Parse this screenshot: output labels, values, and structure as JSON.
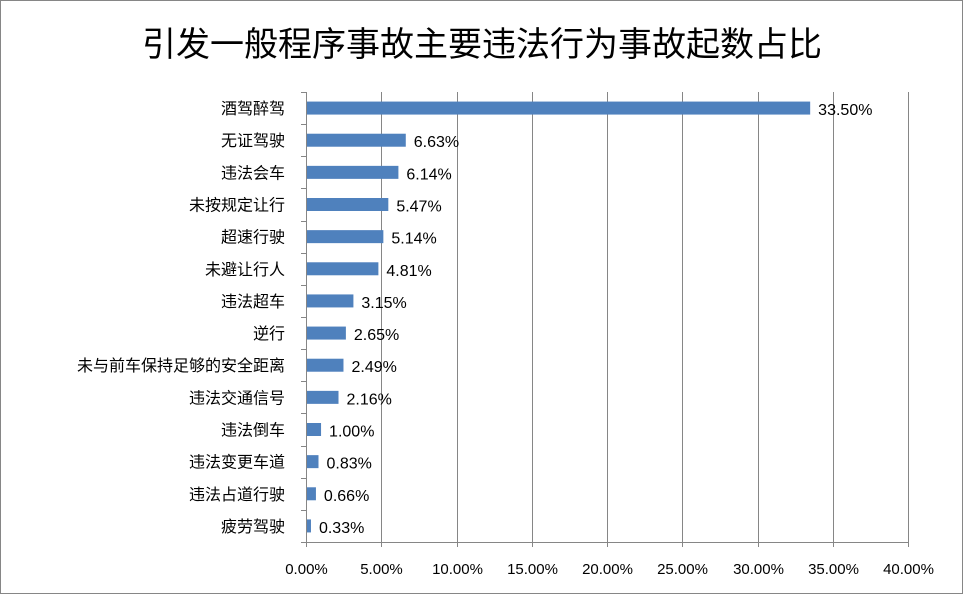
{
  "colors": {
    "bar": "#4f81bd",
    "grid": "#868686",
    "axis": "#868686",
    "frame": "#868686",
    "text": "#000000"
  },
  "chart_data": {
    "type": "bar",
    "orientation": "horizontal",
    "title": "引发一般程序事故主要违法行为事故起数占比",
    "xlabel": "",
    "ylabel": "",
    "categories": [
      "酒驾醉驾",
      "无证驾驶",
      "违法会车",
      "未按规定让行",
      "超速行驶",
      "未避让行人",
      "违法超车",
      "逆行",
      "未与前车保持足够的安全距离",
      "违法交通信号",
      "违法倒车",
      "违法变更车道",
      "违法占道行驶",
      "疲劳驾驶"
    ],
    "values": [
      33.5,
      6.63,
      6.14,
      5.47,
      5.14,
      4.81,
      3.15,
      2.65,
      2.49,
      2.16,
      1.0,
      0.83,
      0.66,
      0.33
    ],
    "value_labels": [
      "33.50%",
      "6.63%",
      "6.14%",
      "5.47%",
      "5.14%",
      "4.81%",
      "3.15%",
      "2.65%",
      "2.49%",
      "2.16%",
      "1.00%",
      "0.83%",
      "0.66%",
      "0.33%"
    ],
    "xlim": [
      0,
      40
    ],
    "x_ticks": [
      0,
      5,
      10,
      15,
      20,
      25,
      30,
      35,
      40
    ],
    "x_tick_labels": [
      "0.00%",
      "5.00%",
      "10.00%",
      "15.00%",
      "20.00%",
      "25.00%",
      "30.00%",
      "35.00%",
      "40.00%"
    ],
    "grid": "vertical",
    "legend": "none"
  }
}
